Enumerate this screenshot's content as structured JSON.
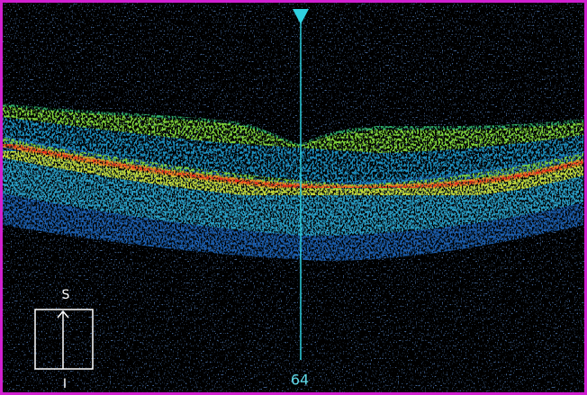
{
  "orientation": {
    "top": "S",
    "bottom": "I"
  },
  "scan_line": {
    "label": "64"
  }
}
